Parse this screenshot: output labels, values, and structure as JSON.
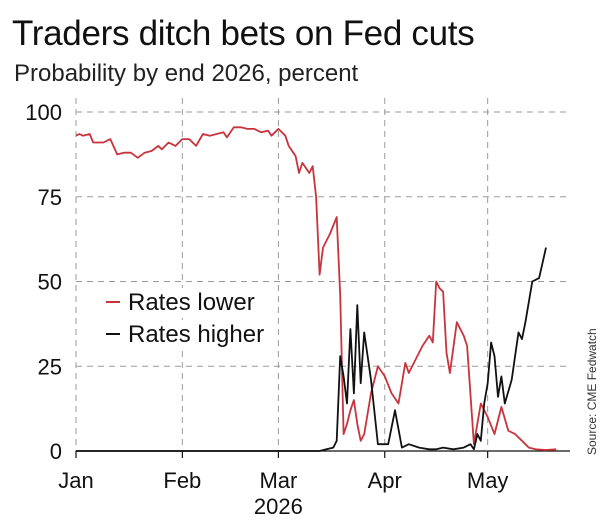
{
  "header": {
    "title": "Traders ditch bets on Fed cuts",
    "subtitle": "Probability by end 2026, percent"
  },
  "source": "Source: CME Fedwatch",
  "colors": {
    "rates_lower": "#c8333c",
    "rates_higher": "#111111",
    "grid": "#9a9a9a"
  },
  "chart_data": {
    "type": "line",
    "title": "Traders ditch bets on Fed cuts",
    "subtitle": "Probability by end 2026, percent",
    "xlabel": "",
    "ylabel": "",
    "x_ticks": [
      {
        "label": "Jan",
        "date": "2026-01-01"
      },
      {
        "label": "Feb",
        "date": "2026-02-01"
      },
      {
        "label": "Mar",
        "date": "2026-03-01"
      },
      {
        "label": "Apr",
        "date": "2026-04-01"
      },
      {
        "label": "May",
        "date": "2026-05-01"
      }
    ],
    "year_label": "2026",
    "xlim": [
      "2026-01-01",
      "2026-05-25"
    ],
    "y_ticks": [
      0,
      25,
      50,
      75,
      100
    ],
    "ylim": [
      0,
      100
    ],
    "grid": true,
    "legend_position": "middle-left",
    "series": [
      {
        "name": "Rates lower",
        "color": "#c8333c",
        "points": [
          [
            "2026-01-01",
            93
          ],
          [
            "2026-01-02",
            93.5
          ],
          [
            "2026-01-03",
            93
          ],
          [
            "2026-01-05",
            93.5
          ],
          [
            "2026-01-06",
            91
          ],
          [
            "2026-01-08",
            91
          ],
          [
            "2026-01-09",
            91
          ],
          [
            "2026-01-11",
            92
          ],
          [
            "2026-01-13",
            87.5
          ],
          [
            "2026-01-15",
            88
          ],
          [
            "2026-01-17",
            88
          ],
          [
            "2026-01-19",
            86.5
          ],
          [
            "2026-01-21",
            88
          ],
          [
            "2026-01-23",
            88.5
          ],
          [
            "2026-01-25",
            90
          ],
          [
            "2026-01-26",
            89
          ],
          [
            "2026-01-28",
            91
          ],
          [
            "2026-01-30",
            90
          ],
          [
            "2026-02-01",
            92
          ],
          [
            "2026-02-03",
            92
          ],
          [
            "2026-02-05",
            90
          ],
          [
            "2026-02-07",
            93.5
          ],
          [
            "2026-02-09",
            93
          ],
          [
            "2026-02-11",
            93.5
          ],
          [
            "2026-02-13",
            94
          ],
          [
            "2026-02-14",
            92.5
          ],
          [
            "2026-02-16",
            95.5
          ],
          [
            "2026-02-18",
            95.5
          ],
          [
            "2026-02-20",
            95
          ],
          [
            "2026-02-22",
            95
          ],
          [
            "2026-02-24",
            94
          ],
          [
            "2026-02-26",
            94.5
          ],
          [
            "2026-02-27",
            93
          ],
          [
            "2026-03-01",
            95
          ],
          [
            "2026-03-03",
            93
          ],
          [
            "2026-03-04",
            90
          ],
          [
            "2026-03-06",
            87
          ],
          [
            "2026-03-07",
            82
          ],
          [
            "2026-03-08",
            85
          ],
          [
            "2026-03-09",
            83.5
          ],
          [
            "2026-03-10",
            82
          ],
          [
            "2026-03-11",
            84
          ],
          [
            "2026-03-12",
            75
          ],
          [
            "2026-03-13",
            52
          ],
          [
            "2026-03-14",
            60
          ],
          [
            "2026-03-16",
            64
          ],
          [
            "2026-03-18",
            69
          ],
          [
            "2026-03-19",
            46
          ],
          [
            "2026-03-20",
            5
          ],
          [
            "2026-03-21",
            8
          ],
          [
            "2026-03-22",
            12
          ],
          [
            "2026-03-23",
            15
          ],
          [
            "2026-03-24",
            8
          ],
          [
            "2026-03-25",
            3
          ],
          [
            "2026-03-26",
            5
          ],
          [
            "2026-03-28",
            17
          ],
          [
            "2026-03-30",
            25
          ],
          [
            "2026-04-01",
            22
          ],
          [
            "2026-04-03",
            17
          ],
          [
            "2026-04-05",
            14
          ],
          [
            "2026-04-07",
            26
          ],
          [
            "2026-04-08",
            23
          ],
          [
            "2026-04-10",
            27
          ],
          [
            "2026-04-12",
            31
          ],
          [
            "2026-04-14",
            34
          ],
          [
            "2026-04-15",
            32
          ],
          [
            "2026-04-16",
            50
          ],
          [
            "2026-04-17",
            48
          ],
          [
            "2026-04-18",
            47
          ],
          [
            "2026-04-19",
            29
          ],
          [
            "2026-04-20",
            23
          ],
          [
            "2026-04-22",
            38
          ],
          [
            "2026-04-24",
            34
          ],
          [
            "2026-04-25",
            31
          ],
          [
            "2026-04-27",
            2
          ],
          [
            "2026-04-29",
            14
          ],
          [
            "2026-05-01",
            10
          ],
          [
            "2026-05-03",
            5
          ],
          [
            "2026-05-05",
            13
          ],
          [
            "2026-05-07",
            6
          ],
          [
            "2026-05-09",
            5
          ],
          [
            "2026-05-11",
            3
          ],
          [
            "2026-05-13",
            1
          ],
          [
            "2026-05-15",
            0.5
          ],
          [
            "2026-05-18",
            0.3
          ],
          [
            "2026-05-21",
            0.5
          ]
        ]
      },
      {
        "name": "Rates higher",
        "color": "#111111",
        "points": [
          [
            "2026-01-01",
            0
          ],
          [
            "2026-03-13",
            0
          ],
          [
            "2026-03-15",
            0.5
          ],
          [
            "2026-03-17",
            1
          ],
          [
            "2026-03-18",
            3
          ],
          [
            "2026-03-19",
            28
          ],
          [
            "2026-03-20",
            22
          ],
          [
            "2026-03-21",
            14
          ],
          [
            "2026-03-22",
            36
          ],
          [
            "2026-03-23",
            17
          ],
          [
            "2026-03-24",
            43
          ],
          [
            "2026-03-25",
            20
          ],
          [
            "2026-03-26",
            35
          ],
          [
            "2026-03-28",
            21
          ],
          [
            "2026-03-30",
            2
          ],
          [
            "2026-04-02",
            2
          ],
          [
            "2026-04-04",
            12
          ],
          [
            "2026-04-06",
            1
          ],
          [
            "2026-04-08",
            2
          ],
          [
            "2026-04-11",
            1
          ],
          [
            "2026-04-14",
            0.5
          ],
          [
            "2026-04-16",
            0.5
          ],
          [
            "2026-04-18",
            1
          ],
          [
            "2026-04-21",
            0.5
          ],
          [
            "2026-04-24",
            1
          ],
          [
            "2026-04-26",
            2
          ],
          [
            "2026-04-27",
            0.5
          ],
          [
            "2026-04-28",
            5
          ],
          [
            "2026-04-29",
            3
          ],
          [
            "2026-04-30",
            14
          ],
          [
            "2026-05-01",
            20
          ],
          [
            "2026-05-02",
            32
          ],
          [
            "2026-05-03",
            28
          ],
          [
            "2026-05-04",
            16
          ],
          [
            "2026-05-05",
            22
          ],
          [
            "2026-05-06",
            14
          ],
          [
            "2026-05-08",
            21
          ],
          [
            "2026-05-10",
            35
          ],
          [
            "2026-05-11",
            33
          ],
          [
            "2026-05-12",
            38
          ],
          [
            "2026-05-14",
            50
          ],
          [
            "2026-05-16",
            51
          ],
          [
            "2026-05-18",
            60
          ]
        ]
      }
    ]
  }
}
